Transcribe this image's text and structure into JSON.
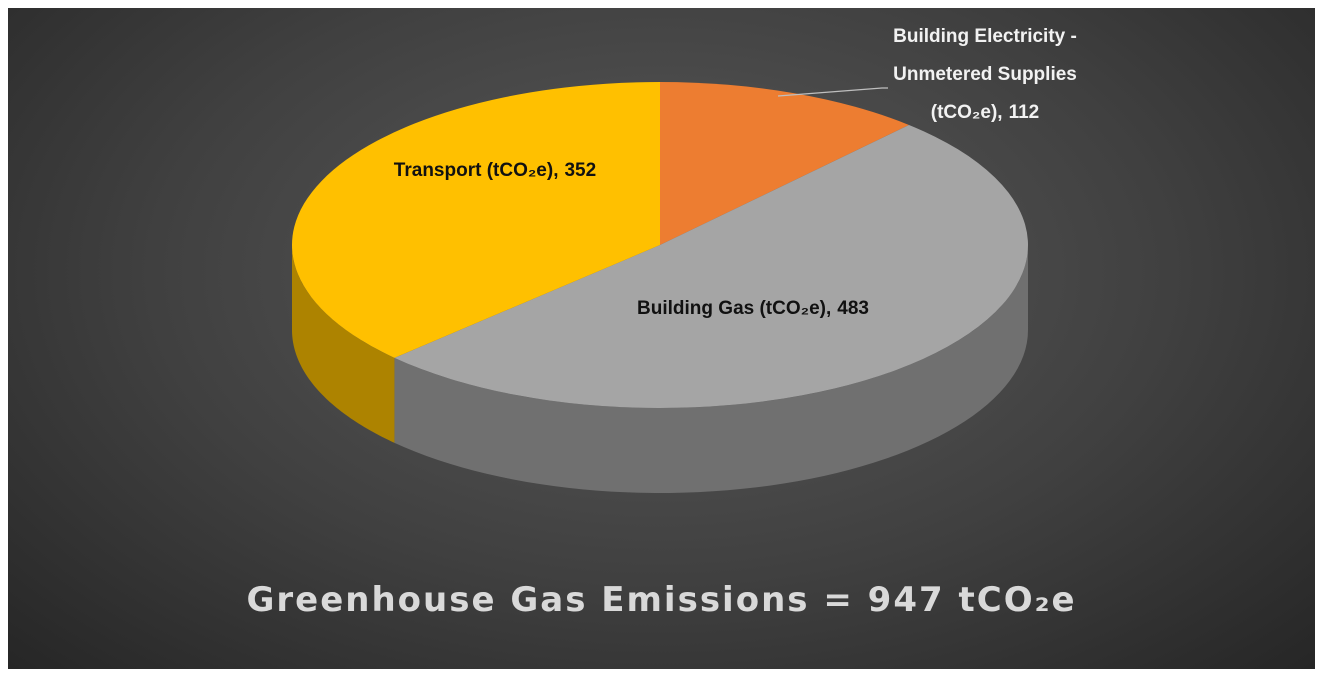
{
  "chart_data": {
    "type": "pie3d",
    "title": "Greenhouse Gas Emissions = 947 tCO₂e",
    "categories": [
      "Building Electricity - Unmetered Supplies (tCO₂e)",
      "Building Gas (tCO₂e)",
      "Transport (tCO₂e)"
    ],
    "values": [
      112,
      483,
      352
    ],
    "colors": [
      "#ed7d31",
      "#a5a5a5",
      "#ffc000"
    ]
  }
}
